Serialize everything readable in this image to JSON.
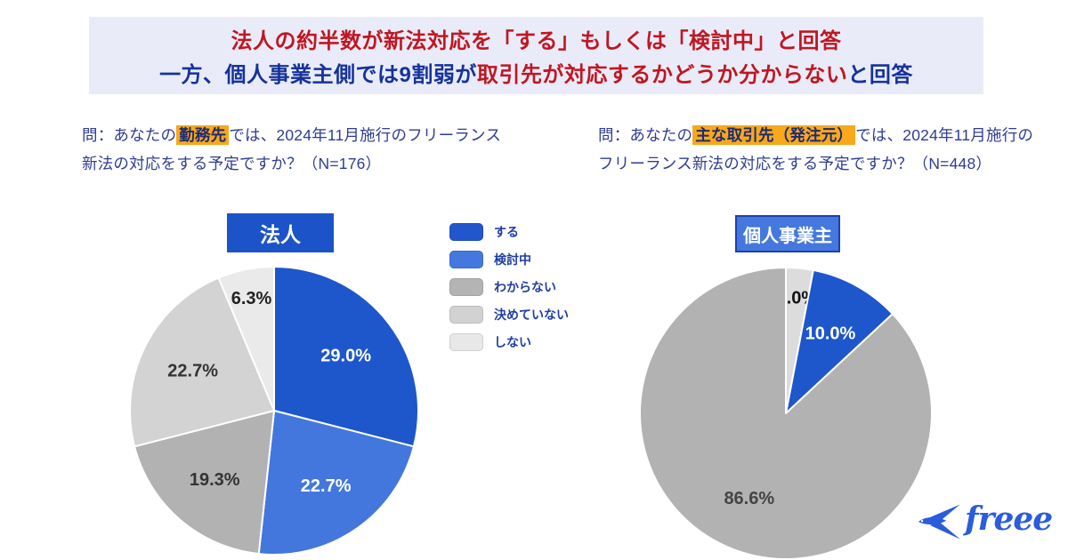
{
  "header": {
    "line1": "法人の約半数が新法対応を「する」もしくは「検討中」と回答",
    "line2_navy_a": "一方、個人事業主側では9割弱が",
    "line2_red": "取引先が対応するかどうか分からない",
    "line2_navy_b": "と回答",
    "bg_color": "#e9ecf8",
    "red_color": "#c01622",
    "navy_color": "#16329b"
  },
  "questions": {
    "left": {
      "prefix": "問：あなたの",
      "highlight": "勤務先",
      "suffix": "では、2024年11月施行のフリーランス新法の対応をする予定ですか？（N=176）",
      "highlight_color": "#f7a81b"
    },
    "right": {
      "prefix": "問：あなたの",
      "highlight": "主な取引先（発注元）",
      "suffix": "では、2024年11月施行のフリーランス新法の対応をする予定ですか？（N=448）",
      "highlight_color": "#f7a81b"
    }
  },
  "legend": {
    "items": [
      {
        "label": "する",
        "color": "#2256cd"
      },
      {
        "label": "検討中",
        "color": "#4478de"
      },
      {
        "label": "わからない",
        "color": "#b4b4b4"
      },
      {
        "label": "決めていない",
        "color": "#d2d2d2"
      },
      {
        "label": "しない",
        "color": "#e8e8e8"
      }
    ]
  },
  "chart_data": [
    {
      "type": "pie",
      "title": "法人",
      "sample_label": "N=176",
      "start_angle_deg": 0,
      "direction": "clockwise",
      "slices": [
        {
          "category": "する",
          "value": 29.0,
          "color": "#1e56cc",
          "label_color": "#ffffff"
        },
        {
          "category": "検討中",
          "value": 22.7,
          "color": "#4377dd",
          "label_color": "#ffffff"
        },
        {
          "category": "わからない",
          "value": 19.3,
          "color": "#b2b2b2",
          "label_color": "#333333"
        },
        {
          "category": "決めていない",
          "value": 22.7,
          "color": "#d3d3d3",
          "label_color": "#333333"
        },
        {
          "category": "しない",
          "value": 6.3,
          "color": "#eaeaea",
          "label_color": "#222222"
        }
      ]
    },
    {
      "type": "pie",
      "title": "個人事業主",
      "sample_label": "N=448",
      "start_angle_deg": 0,
      "direction": "clockwise",
      "slices": [
        {
          "category": "",
          "value": 3.0,
          "color": "#dcdcdc",
          "label_color": "#111111"
        },
        {
          "category": "する",
          "value": 10.0,
          "color": "#1e56cc",
          "label_color": "#ffffff"
        },
        {
          "category": "わからない",
          "value": 86.6,
          "color": "#b2b2b2",
          "label_color": "#444444"
        }
      ]
    }
  ],
  "footer": {
    "logo_text": "freee",
    "logo_color": "#2a5cdb"
  }
}
